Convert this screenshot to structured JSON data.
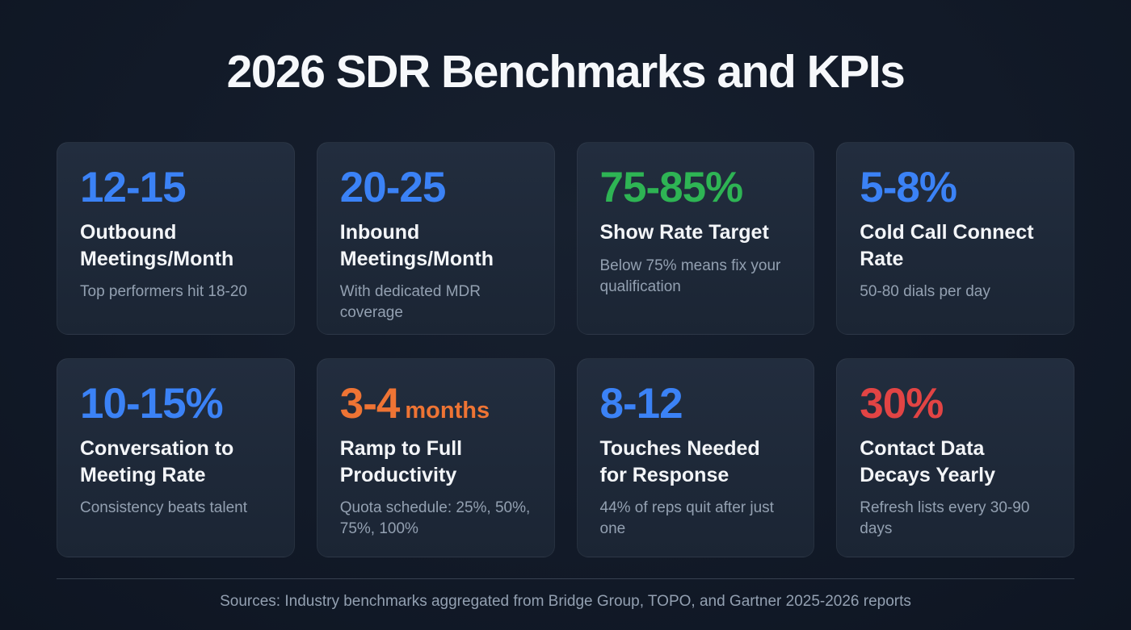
{
  "page": {
    "title": "2026 SDR Benchmarks and KPIs",
    "footer": "Sources: Industry benchmarks aggregated from Bridge Group, TOPO, and Gartner 2025-2026 reports"
  },
  "colors": {
    "background": "#121a28",
    "card": "#1e2939",
    "blue": "#3b82f6",
    "green": "#2eb454",
    "orange": "#ee7434",
    "red": "#e24444",
    "text": "#f3f5f8",
    "muted": "#93a0b1"
  },
  "cards": [
    {
      "value": "12-15",
      "suffix": "",
      "color": "#3b82f6",
      "label": "Outbound Meetings/Month",
      "note": "Top performers hit 18-20"
    },
    {
      "value": "20-25",
      "suffix": "",
      "color": "#3b82f6",
      "label": "Inbound Meetings/Month",
      "note": "With dedicated MDR coverage"
    },
    {
      "value": "75-85%",
      "suffix": "",
      "color": "#2eb454",
      "label": "Show Rate Target",
      "note": "Below 75% means fix your qualification"
    },
    {
      "value": "5-8%",
      "suffix": "",
      "color": "#3b82f6",
      "label": "Cold Call Connect Rate",
      "note": "50-80 dials per day"
    },
    {
      "value": "10-15%",
      "suffix": "",
      "color": "#3b82f6",
      "label": "Conversation to Meeting Rate",
      "note": "Consistency beats talent"
    },
    {
      "value": "3-4",
      "suffix": "months",
      "color": "#ee7434",
      "label": "Ramp to Full Productivity",
      "note": "Quota schedule: 25%, 50%, 75%, 100%"
    },
    {
      "value": "8-12",
      "suffix": "",
      "color": "#3b82f6",
      "label": "Touches Needed for Response",
      "note": "44% of reps quit after just one"
    },
    {
      "value": "30%",
      "suffix": "",
      "color": "#e24444",
      "label": "Contact Data Decays Yearly",
      "note": "Refresh lists every 30-90 days"
    }
  ],
  "chart_data": {
    "type": "table",
    "title": "2026 SDR Benchmarks and KPIs",
    "columns": [
      "Metric",
      "Benchmark",
      "Note"
    ],
    "rows": [
      [
        "Outbound Meetings/Month",
        "12-15",
        "Top performers hit 18-20"
      ],
      [
        "Inbound Meetings/Month",
        "20-25",
        "With dedicated MDR coverage"
      ],
      [
        "Show Rate Target",
        "75-85%",
        "Below 75% means fix your qualification"
      ],
      [
        "Cold Call Connect Rate",
        "5-8%",
        "50-80 dials per day"
      ],
      [
        "Conversation to Meeting Rate",
        "10-15%",
        "Consistency beats talent"
      ],
      [
        "Ramp to Full Productivity",
        "3-4 months",
        "Quota schedule: 25%, 50%, 75%, 100%"
      ],
      [
        "Touches Needed for Response",
        "8-12",
        "44% of reps quit after just one"
      ],
      [
        "Contact Data Decays Yearly",
        "30%",
        "Refresh lists every 30-90 days"
      ]
    ],
    "layout": {
      "grid": "2 rows x 4 columns of stat cards",
      "legend": "none",
      "footer_divider": true
    }
  }
}
